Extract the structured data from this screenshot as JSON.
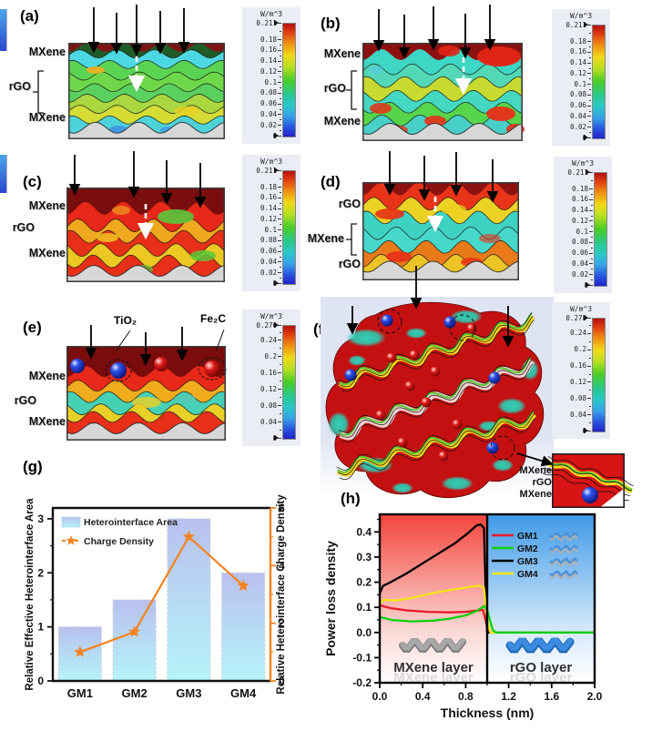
{
  "panels": {
    "a": {
      "label": "(a)",
      "layers": [
        "MXene",
        "rGO",
        "MXene"
      ],
      "colorbar": {
        "title": "W/m^3",
        "max": "0.211",
        "ticks": [
          "0.18",
          "0.16",
          "0.14",
          "0.12",
          "0.1",
          "0.08",
          "0.06",
          "0.04",
          "0.02"
        ],
        "min": "0"
      }
    },
    "b": {
      "label": "(b)",
      "layers": [
        "MXene",
        "rGO",
        "MXene"
      ],
      "colorbar": {
        "title": "W/m^3",
        "max": "0.211",
        "ticks": [
          "0.18",
          "0.16",
          "0.14",
          "0.12",
          "0.1",
          "0.08",
          "0.06",
          "0.04",
          "0.02"
        ],
        "min": "0"
      }
    },
    "c": {
      "label": "(c)",
      "layers": [
        "MXene",
        "rGO",
        "MXene"
      ],
      "colorbar": {
        "title": "W/m^3",
        "max": "0.211",
        "ticks": [
          "0.18",
          "0.16",
          "0.14",
          "0.12",
          "0.1",
          "0.08",
          "0.06",
          "0.04",
          "0.02"
        ],
        "min": "0"
      }
    },
    "d": {
      "label": "(d)",
      "layers": [
        "rGO",
        "MXene",
        "rGO"
      ],
      "colorbar": {
        "title": "W/m^3",
        "max": "0.211",
        "ticks": [
          "0.18",
          "0.16",
          "0.14",
          "0.12",
          "0.1",
          "0.08",
          "0.06",
          "0.04",
          "0.02"
        ],
        "min": "0"
      }
    },
    "e": {
      "label": "(e)",
      "layers": [
        "MXene",
        "rGO",
        "MXene"
      ],
      "annotations": [
        "TiO₂",
        "Fe₂C"
      ],
      "colorbar": {
        "title": "W/m^3",
        "max": "0.276",
        "ticks": [
          "0.24",
          "0.2",
          "0.16",
          "0.12",
          "0.08",
          "0.04"
        ],
        "min": "0"
      }
    },
    "f": {
      "label": "(f)",
      "annotations": [
        "TiO₂",
        "Fe₂C"
      ],
      "inset_layers": [
        "MXene",
        "rGO",
        "MXene"
      ],
      "colorbar": {
        "title": "W/m^3",
        "max": "0.278",
        "ticks": [
          "0.24",
          "0.2",
          "0.16",
          "0.12",
          "0.08",
          "0.04"
        ],
        "min": "0"
      }
    },
    "g": {
      "label": "(g)"
    },
    "h": {
      "label": "(h)"
    }
  },
  "chart_data": [
    {
      "id": "g",
      "type": "bar-line-combo",
      "categories": [
        "GM1",
        "GM2",
        "GM3",
        "GM4"
      ],
      "series": [
        {
          "name": "Heterointerface Area",
          "type": "bar",
          "axis": "left",
          "values": [
            1.0,
            1.5,
            3.0,
            2.0
          ],
          "fill_top": "#b9c0ee",
          "fill_bottom": "#b5f4fa"
        },
        {
          "name": "Charge Density",
          "type": "line-star",
          "axis": "right",
          "values": [
            1.0,
            1.7,
            5.0,
            3.3
          ],
          "color": "#f5831f"
        }
      ],
      "ylabel_left": "Relative Effective Heterointerface Area",
      "ylabel_right": "Relative Heterointerface Charge Density",
      "ylim_left": [
        0,
        3.2
      ],
      "yticks_left": [
        "0",
        "1",
        "2",
        "3"
      ],
      "ylim_right": [
        0,
        6
      ],
      "yticks_right": [
        "0",
        "2",
        "4",
        "6"
      ],
      "legend_position": "top-left",
      "grid": false
    },
    {
      "id": "h",
      "type": "line",
      "xlabel": "Thickness (nm)",
      "ylabel": "Power loss density",
      "xlim": [
        0,
        2
      ],
      "xticks": [
        "0.0",
        "0.4",
        "0.8",
        "1.2",
        "1.6",
        "2.0"
      ],
      "ylim": [
        -0.2,
        0.47
      ],
      "yticks": [
        "-0.2",
        "-0.1",
        "0.0",
        "0.1",
        "0.2",
        "0.3",
        "0.4"
      ],
      "regions": [
        {
          "label": "MXene layer",
          "x": [
            0,
            1
          ],
          "bg": "#f25048"
        },
        {
          "label": "rGO layer",
          "x": [
            1,
            2
          ],
          "bg": "#49a0e8"
        }
      ],
      "series": [
        {
          "name": "GM1",
          "color": "#e8192c",
          "points": [
            [
              0,
              0.108
            ],
            [
              0.1,
              0.097
            ],
            [
              0.25,
              0.088
            ],
            [
              0.45,
              0.082
            ],
            [
              0.65,
              0.08
            ],
            [
              0.8,
              0.082
            ],
            [
              0.9,
              0.087
            ],
            [
              0.96,
              0.09
            ],
            [
              0.99,
              0.04
            ],
            [
              1.01,
              0
            ],
            [
              2,
              0
            ]
          ]
        },
        {
          "name": "GM2",
          "color": "#0fd00f",
          "points": [
            [
              0,
              0.062
            ],
            [
              0.12,
              0.049
            ],
            [
              0.3,
              0.044
            ],
            [
              0.5,
              0.047
            ],
            [
              0.65,
              0.055
            ],
            [
              0.8,
              0.068
            ],
            [
              0.9,
              0.085
            ],
            [
              0.97,
              0.105
            ],
            [
              1.0,
              0.09
            ],
            [
              1.05,
              0.012
            ],
            [
              1.08,
              0
            ],
            [
              2,
              0
            ]
          ]
        },
        {
          "name": "GM3",
          "color": "#000000",
          "points": [
            [
              0,
              0.155
            ],
            [
              0.03,
              0.185
            ],
            [
              0.1,
              0.2
            ],
            [
              0.25,
              0.235
            ],
            [
              0.4,
              0.275
            ],
            [
              0.55,
              0.315
            ],
            [
              0.7,
              0.355
            ],
            [
              0.82,
              0.395
            ],
            [
              0.9,
              0.425
            ],
            [
              0.94,
              0.43
            ],
            [
              0.97,
              0.415
            ],
            [
              0.99,
              0.1
            ],
            [
              1.0,
              0
            ],
            [
              2,
              0
            ]
          ]
        },
        {
          "name": "GM4",
          "color": "#f2e418",
          "points": [
            [
              0,
              0.115
            ],
            [
              0.04,
              0.13
            ],
            [
              0.15,
              0.127
            ],
            [
              0.3,
              0.138
            ],
            [
              0.5,
              0.157
            ],
            [
              0.7,
              0.172
            ],
            [
              0.85,
              0.182
            ],
            [
              0.93,
              0.186
            ],
            [
              0.97,
              0.178
            ],
            [
              1.0,
              0.05
            ],
            [
              1.03,
              0
            ],
            [
              2,
              0
            ]
          ]
        }
      ],
      "legend_icons": "layered-sheet-icon"
    }
  ]
}
